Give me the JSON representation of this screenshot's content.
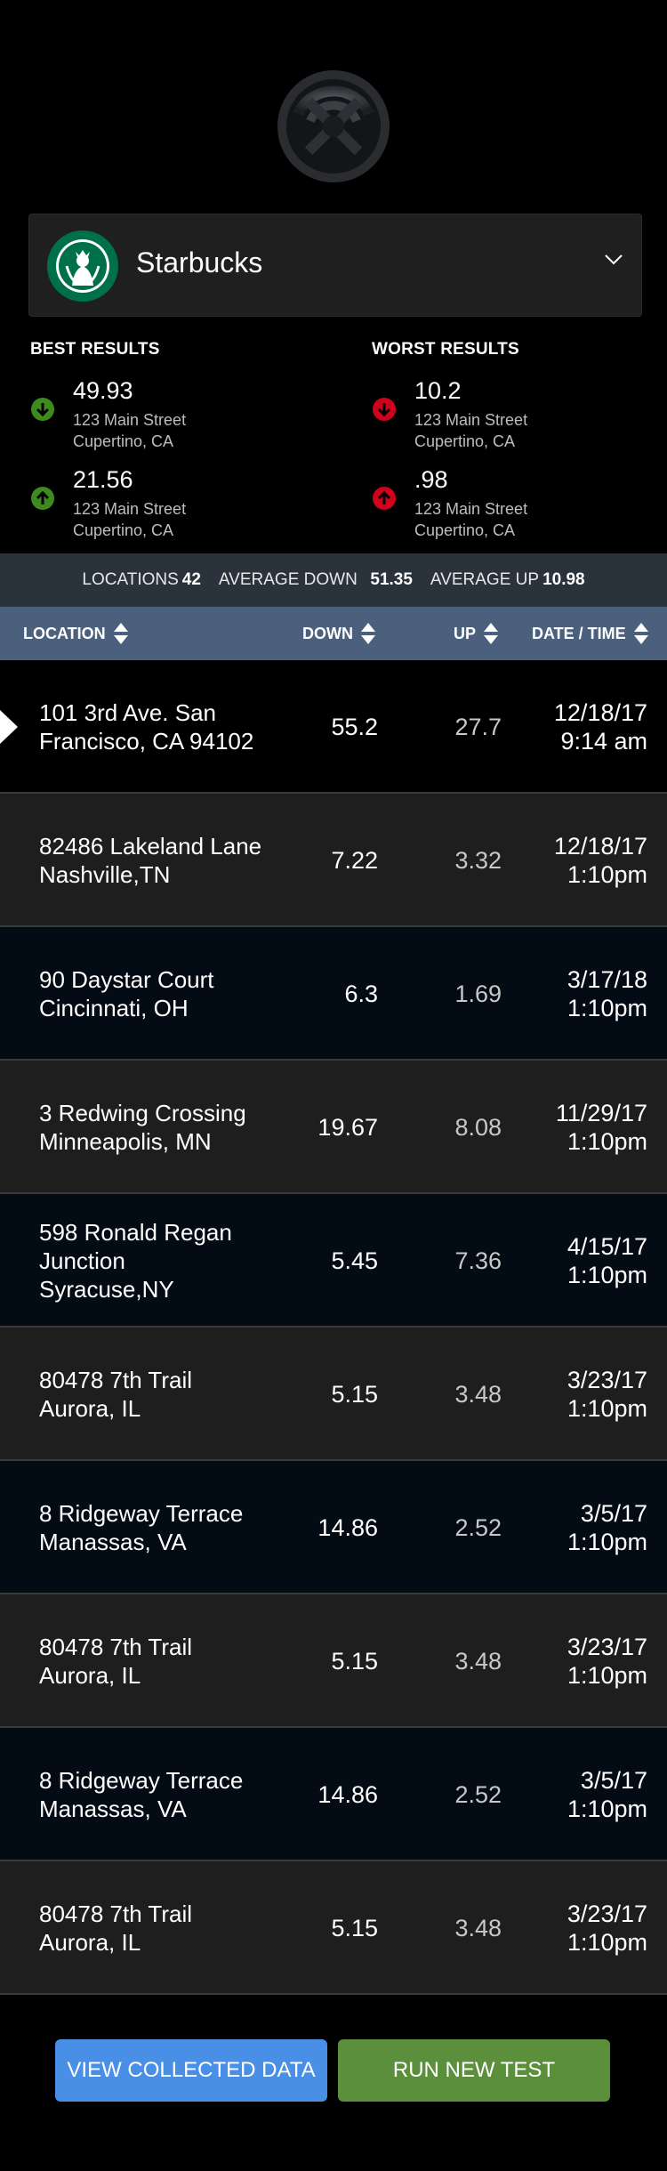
{
  "header": {
    "logo_icon": "speedtest-logo-icon"
  },
  "selector": {
    "brand": "Starbucks",
    "brand_icon": "starbucks-logo-icon",
    "chevron_icon": "chevron-down-icon"
  },
  "best": {
    "title": "BEST RESULTS",
    "items": [
      {
        "value": "49.93",
        "street": "123 Main Street",
        "city": "Cupertino, CA",
        "icon": "arrow-down-circle-icon",
        "color": "#3d8b1e"
      },
      {
        "value": "21.56",
        "street": "123 Main Street",
        "city": "Cupertino, CA",
        "icon": "arrow-up-circle-icon",
        "color": "#3d8b1e"
      }
    ]
  },
  "worst": {
    "title": "WORST RESULTS",
    "items": [
      {
        "value": "10.2",
        "street": "123 Main Street",
        "city": "Cupertino, CA",
        "icon": "arrow-down-circle-icon",
        "color": "#d0021b"
      },
      {
        "value": ".98",
        "street": "123 Main Street",
        "city": "Cupertino, CA",
        "icon": "arrow-up-circle-icon",
        "color": "#d0021b"
      }
    ]
  },
  "summary": {
    "locations_label": "LOCATIONS",
    "locations_value": "42",
    "avg_down_label": "AVERAGE DOWN",
    "avg_down_value": "51.35",
    "avg_up_label": "AVERAGE UP",
    "avg_up_value": "10.98"
  },
  "table": {
    "headers": {
      "location": "LOCATION",
      "down": "DOWN",
      "up": "UP",
      "datetime": "DATE / TIME"
    },
    "rows": [
      {
        "loc1": "101 3rd Ave. San",
        "loc2": "Francisco, CA 94102",
        "loc3": "",
        "down": "55.2",
        "up": "27.7",
        "date": "12/18/17",
        "time": "9:14 am"
      },
      {
        "loc1": "82486 Lakeland Lane",
        "loc2": "Nashville,TN",
        "loc3": "",
        "down": "7.22",
        "up": "3.32",
        "date": "12/18/17",
        "time": "1:10pm"
      },
      {
        "loc1": "90 Daystar Court",
        "loc2": "Cincinnati, OH",
        "loc3": "",
        "down": "6.3",
        "up": "1.69",
        "date": "3/17/18",
        "time": "1:10pm"
      },
      {
        "loc1": "3 Redwing Crossing",
        "loc2": "Minneapolis, MN",
        "loc3": "",
        "down": "19.67",
        "up": "8.08",
        "date": "11/29/17",
        "time": "1:10pm"
      },
      {
        "loc1": "598 Ronald Regan",
        "loc2": "Junction",
        "loc3": "Syracuse,NY",
        "down": "5.45",
        "up": "7.36",
        "date": "4/15/17",
        "time": "1:10pm"
      },
      {
        "loc1": "80478 7th Trail",
        "loc2": "Aurora, IL",
        "loc3": "",
        "down": "5.15",
        "up": "3.48",
        "date": "3/23/17",
        "time": "1:10pm"
      },
      {
        "loc1": "8 Ridgeway Terrace",
        "loc2": "Manassas, VA",
        "loc3": "",
        "down": "14.86",
        "up": "2.52",
        "date": "3/5/17",
        "time": "1:10pm"
      },
      {
        "loc1": "80478 7th Trail",
        "loc2": "Aurora, IL",
        "loc3": "",
        "down": "5.15",
        "up": "3.48",
        "date": "3/23/17",
        "time": "1:10pm"
      },
      {
        "loc1": "8 Ridgeway Terrace",
        "loc2": "Manassas, VA",
        "loc3": "",
        "down": "14.86",
        "up": "2.52",
        "date": "3/5/17",
        "time": "1:10pm"
      },
      {
        "loc1": "80478 7th Trail",
        "loc2": "Aurora, IL",
        "loc3": "",
        "down": "5.15",
        "up": "3.48",
        "date": "3/23/17",
        "time": "1:10pm"
      }
    ]
  },
  "buttons": {
    "view": "VIEW COLLECTED DATA",
    "run": "RUN NEW TEST"
  },
  "colors": {
    "summary_bg": "#2a323c",
    "header_bg": "#4a607d",
    "view_btn": "#4a8fe6",
    "run_btn": "#5b8f3c"
  }
}
